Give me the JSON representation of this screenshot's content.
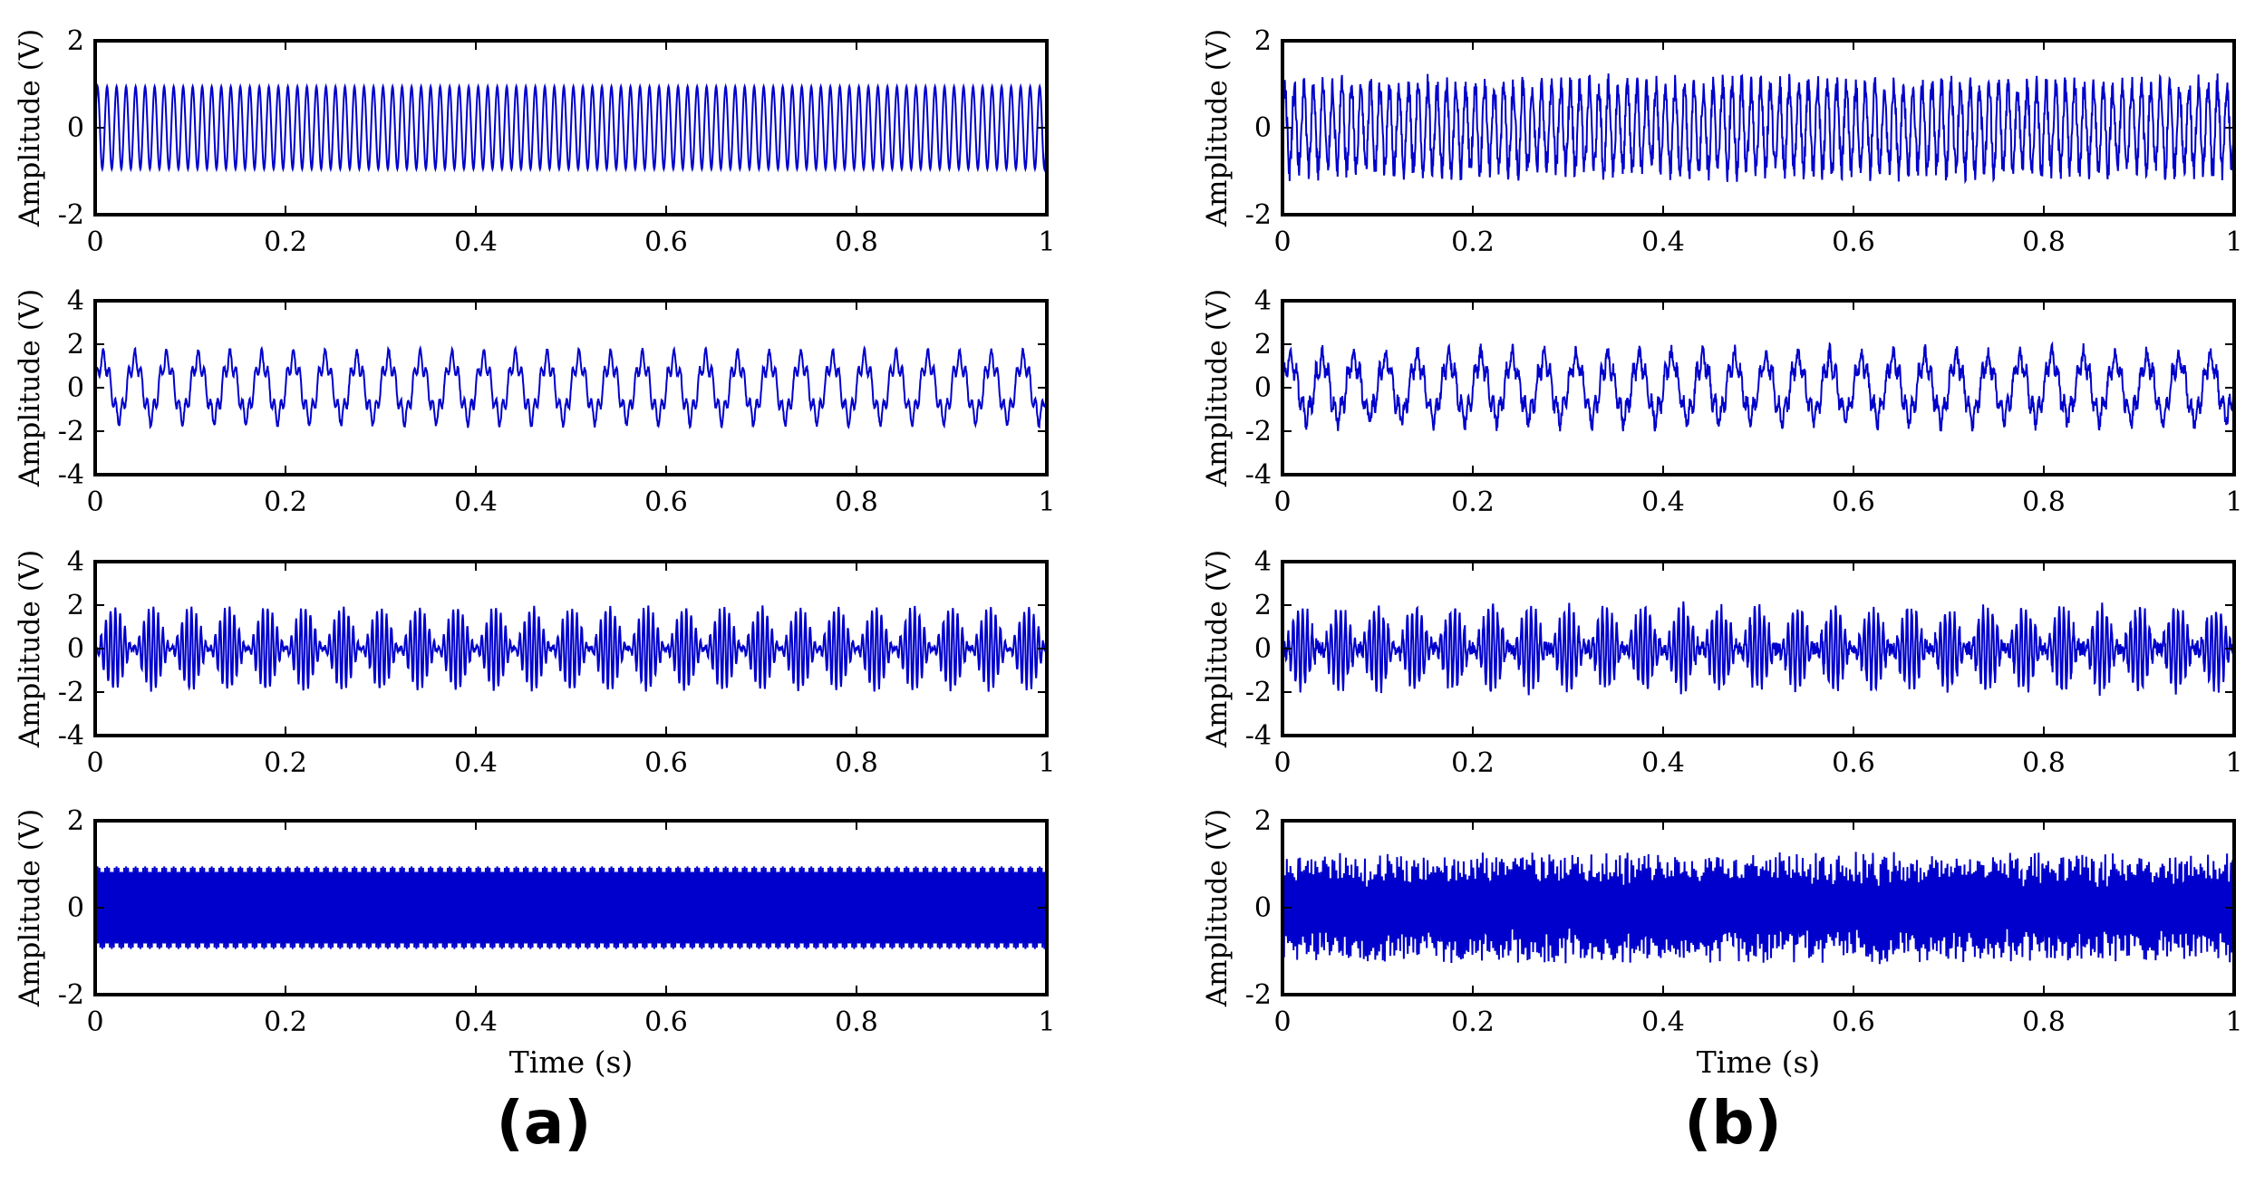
{
  "panels": [
    {
      "label": "(a)"
    },
    {
      "label": "(b)"
    }
  ],
  "colors": {
    "trace": "#0000cc",
    "axes": "#000000"
  },
  "chart_data": [
    {
      "type": "line",
      "panel": "(a)",
      "row": 1,
      "title": "",
      "xlabel": "",
      "ylabel": "Amplitude (V)",
      "xlim": [
        0,
        1
      ],
      "ylim": [
        -2,
        2
      ],
      "xticks": [
        0,
        0.2,
        0.4,
        0.6,
        0.8,
        1
      ],
      "yticks": [
        -2,
        0,
        2
      ],
      "xtick_labels": [
        "0",
        "0.2",
        "0.4",
        "0.6",
        "0.8",
        "1"
      ],
      "ytick_labels": [
        "-2",
        "0",
        "2"
      ],
      "signal": {
        "components": [
          {
            "freq_hz": 100,
            "amp": 0.95
          }
        ],
        "noise_amp": 0.0
      },
      "series": [
        {
          "values_range": [
            -0.95,
            0.95
          ]
        }
      ]
    },
    {
      "type": "line",
      "panel": "(a)",
      "row": 2,
      "title": "",
      "xlabel": "",
      "ylabel": "Amplitude (V)",
      "xlim": [
        0,
        1
      ],
      "ylim": [
        -4,
        4
      ],
      "xticks": [
        0,
        0.2,
        0.4,
        0.6,
        0.8,
        1
      ],
      "yticks": [
        -4,
        -2,
        0,
        2,
        4
      ],
      "xtick_labels": [
        "0",
        "0.2",
        "0.4",
        "0.6",
        "0.8",
        "1"
      ],
      "ytick_labels": [
        "-4",
        "-2",
        "0",
        "2",
        "4"
      ],
      "signal": {
        "components": [
          {
            "freq_hz": 30,
            "amp": 1.3
          },
          {
            "freq_hz": 150,
            "amp": 0.45
          }
        ],
        "noise_amp": 0.1
      },
      "series": [
        {
          "values_range": [
            -1.9,
            1.9
          ]
        }
      ]
    },
    {
      "type": "line",
      "panel": "(a)",
      "row": 3,
      "title": "",
      "xlabel": "",
      "ylabel": "Amplitude (V)",
      "xlim": [
        0,
        1
      ],
      "ylim": [
        -4,
        4
      ],
      "xticks": [
        0,
        0.2,
        0.4,
        0.6,
        0.8,
        1
      ],
      "yticks": [
        -4,
        -2,
        0,
        2,
        4
      ],
      "xtick_labels": [
        "0",
        "0.2",
        "0.4",
        "0.6",
        "0.8",
        "1"
      ],
      "ytick_labels": [
        "-4",
        "-2",
        "0",
        "2",
        "4"
      ],
      "signal": {
        "envelope_freq_hz": 25,
        "carrier_freq_hz": 200,
        "amp": 1.9,
        "noise_amp": 0.1
      },
      "series": [
        {
          "values_range": [
            -1.9,
            1.9
          ]
        }
      ]
    },
    {
      "type": "line",
      "panel": "(a)",
      "row": 4,
      "title": "",
      "xlabel": "Time (s)",
      "ylabel": "Amplitude (V)",
      "xlim": [
        0,
        1
      ],
      "ylim": [
        -2,
        2
      ],
      "xticks": [
        0,
        0.2,
        0.4,
        0.6,
        0.8,
        1
      ],
      "yticks": [
        -2,
        0,
        2
      ],
      "xtick_labels": [
        "0",
        "0.2",
        "0.4",
        "0.6",
        "0.8",
        "1"
      ],
      "ytick_labels": [
        "-2",
        "0",
        "2"
      ],
      "signal": {
        "components": [
          {
            "freq_hz": 500,
            "amp": 0.95
          }
        ],
        "noise_amp": 0.0
      },
      "series": [
        {
          "values_range": [
            -1.0,
            1.0
          ]
        }
      ]
    },
    {
      "type": "line",
      "panel": "(b)",
      "row": 1,
      "title": "",
      "xlabel": "",
      "ylabel": "Amplitude (V)",
      "xlim": [
        0,
        1
      ],
      "ylim": [
        -2,
        2
      ],
      "xticks": [
        0,
        0.2,
        0.4,
        0.6,
        0.8,
        1
      ],
      "yticks": [
        -2,
        0,
        2
      ],
      "xtick_labels": [
        "0",
        "0.2",
        "0.4",
        "0.6",
        "0.8",
        "1"
      ],
      "ytick_labels": [
        "-2",
        "0",
        "2"
      ],
      "signal": {
        "components": [
          {
            "freq_hz": 100,
            "amp": 0.95
          }
        ],
        "noise_amp": 0.3
      },
      "series": [
        {
          "values_range": [
            -1.25,
            1.25
          ]
        }
      ]
    },
    {
      "type": "line",
      "panel": "(b)",
      "row": 2,
      "title": "",
      "xlabel": "",
      "ylabel": "Amplitude (V)",
      "xlim": [
        0,
        1
      ],
      "ylim": [
        -4,
        4
      ],
      "xticks": [
        0,
        0.2,
        0.4,
        0.6,
        0.8,
        1
      ],
      "yticks": [
        -4,
        -2,
        0,
        2,
        4
      ],
      "xtick_labels": [
        "0",
        "0.2",
        "0.4",
        "0.6",
        "0.8",
        "1"
      ],
      "ytick_labels": [
        "-4",
        "-2",
        "0",
        "2",
        "4"
      ],
      "signal": {
        "components": [
          {
            "freq_hz": 30,
            "amp": 1.3
          },
          {
            "freq_hz": 150,
            "amp": 0.45
          }
        ],
        "noise_amp": 0.3
      },
      "series": [
        {
          "values_range": [
            -2.1,
            2.1
          ]
        }
      ]
    },
    {
      "type": "line",
      "panel": "(b)",
      "row": 3,
      "title": "",
      "xlabel": "",
      "ylabel": "Amplitude (V)",
      "xlim": [
        0,
        1
      ],
      "ylim": [
        -4,
        4
      ],
      "xticks": [
        0,
        0.2,
        0.4,
        0.6,
        0.8,
        1
      ],
      "yticks": [
        -4,
        -2,
        0,
        2,
        4
      ],
      "xtick_labels": [
        "0",
        "0.2",
        "0.4",
        "0.6",
        "0.8",
        "1"
      ],
      "ytick_labels": [
        "-4",
        "-2",
        "0",
        "2",
        "4"
      ],
      "signal": {
        "envelope_freq_hz": 25,
        "carrier_freq_hz": 200,
        "amp": 1.9,
        "noise_amp": 0.3
      },
      "series": [
        {
          "values_range": [
            -2.3,
            2.3
          ]
        }
      ]
    },
    {
      "type": "line",
      "panel": "(b)",
      "row": 4,
      "title": "",
      "xlabel": "Time (s)",
      "ylabel": "Amplitude (V)",
      "xlim": [
        0,
        1
      ],
      "ylim": [
        -2,
        2
      ],
      "xticks": [
        0,
        0.2,
        0.4,
        0.6,
        0.8,
        1
      ],
      "yticks": [
        -2,
        0,
        2
      ],
      "xtick_labels": [
        "0",
        "0.2",
        "0.4",
        "0.6",
        "0.8",
        "1"
      ],
      "ytick_labels": [
        "-2",
        "0",
        "2"
      ],
      "signal": {
        "components": [
          {
            "freq_hz": 500,
            "amp": 0.95
          }
        ],
        "noise_amp": 0.35
      },
      "series": [
        {
          "values_range": [
            -1.3,
            1.3
          ]
        }
      ]
    }
  ]
}
